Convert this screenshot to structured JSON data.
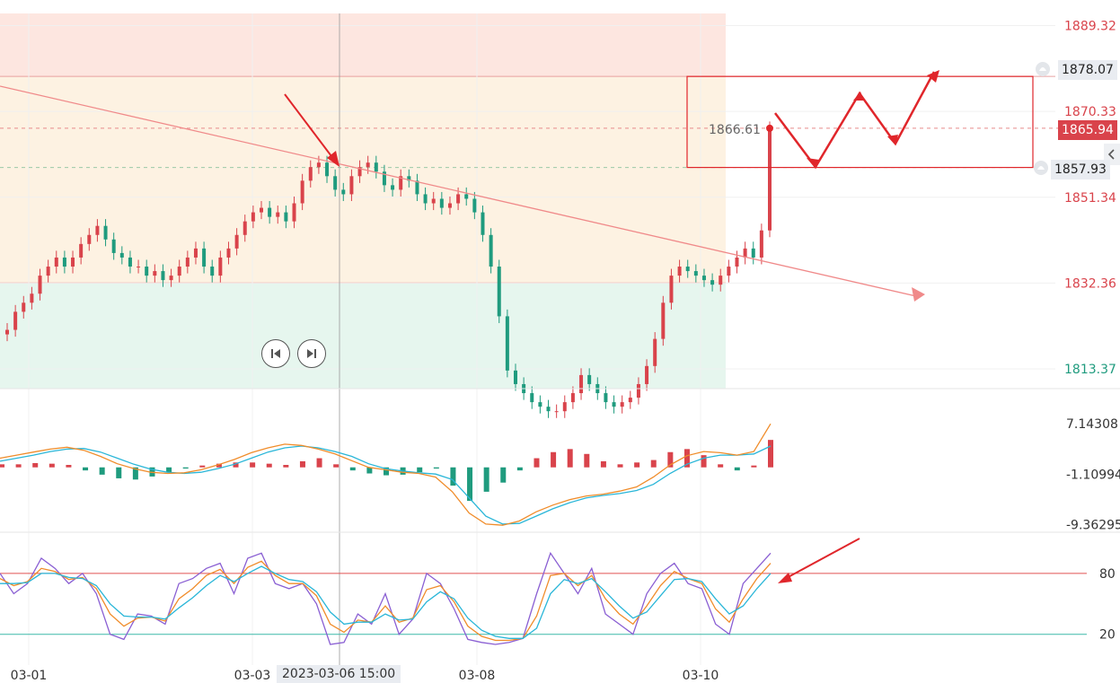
{
  "header": {
    "partial_text": "…"
  },
  "chart_data": [
    {
      "type": "candlestick",
      "title": "",
      "x_ticks": [
        "03-01",
        "03-03",
        "03-08",
        "03-10"
      ],
      "crosshair_time": "2023-03-06 15:00",
      "y_ticks": [
        "1889.32",
        "1870.33",
        "1851.34",
        "1832.36",
        "1813.37"
      ],
      "price_tags": {
        "alert_upper": "1878.07",
        "current": "1865.94",
        "alert_lower": "1857.93",
        "last_close_label": "1866.61"
      },
      "zones": {
        "resistance_top": 1889.32,
        "resistance_bottom": 1878.07,
        "support": 1832.36,
        "bottom": 1813.37
      },
      "colors": {
        "up": "#d9434b",
        "down": "#1f9b7e",
        "resistance_zone": "#fde6e0",
        "middle_zone": "#fdf2e2",
        "support_zone": "#e6f6ee",
        "annotation": "#e0262b"
      },
      "closes": [
        1822,
        1826,
        1828,
        1830,
        1834,
        1836,
        1838,
        1836,
        1838,
        1841,
        1843,
        1845,
        1842,
        1839,
        1838,
        1836,
        1836,
        1834,
        1835,
        1833,
        1834,
        1836,
        1838,
        1840,
        1836,
        1834,
        1838,
        1840,
        1843,
        1846,
        1848,
        1849,
        1847,
        1848,
        1846,
        1850,
        1855,
        1858,
        1859,
        1856,
        1853,
        1852,
        1856,
        1858,
        1859,
        1857,
        1854,
        1853,
        1856,
        1855,
        1852,
        1850,
        1851,
        1849,
        1850,
        1852,
        1851,
        1848,
        1843,
        1836,
        1825,
        1813,
        1810,
        1808,
        1806,
        1805,
        1804,
        1804,
        1806,
        1808,
        1812,
        1810,
        1808,
        1806,
        1805,
        1806,
        1807,
        1810,
        1814,
        1820,
        1828,
        1834,
        1836,
        1835,
        1834,
        1833,
        1832,
        1834,
        1836,
        1838,
        1840,
        1838,
        1844,
        1866.61
      ]
    },
    {
      "type": "macd",
      "y_ticks": [
        "7.14308",
        "-1.10994",
        "-9.36295"
      ],
      "series": [
        {
          "name": "",
          "color": "#29b6d8",
          "values": [
            1,
            1.5,
            2,
            2.6,
            3,
            3.1,
            2.5,
            1.5,
            0.5,
            -0.3,
            -0.8,
            -1.0,
            -0.8,
            -0.2,
            0.5,
            1.5,
            2.5,
            3.2,
            3.5,
            3.2,
            2.6,
            1.8,
            0.6,
            -0.2,
            -0.6,
            -0.9,
            -1.1,
            -2.0,
            -5.0,
            -8.0,
            -9.3,
            -9.2,
            -8.0,
            -6.8,
            -5.8,
            -5.0,
            -4.6,
            -4.3,
            -3.8,
            -2.8,
            -1.0,
            0.5,
            1.5,
            2.0,
            2.0,
            2.2,
            3.5
          ]
        },
        {
          "name": "",
          "color": "#f08c2a",
          "values": [
            1.5,
            2.0,
            2.5,
            3.0,
            3.3,
            2.8,
            1.8,
            0.6,
            -0.2,
            -0.8,
            -1.0,
            -0.9,
            -0.4,
            0.4,
            1.3,
            2.4,
            3.2,
            3.8,
            3.6,
            3.0,
            2.2,
            1.1,
            0.0,
            -0.4,
            -0.8,
            -1.0,
            -1.6,
            -4.0,
            -7.5,
            -9.3,
            -9.5,
            -8.8,
            -7.3,
            -6.2,
            -5.3,
            -4.7,
            -4.4,
            -3.9,
            -3.2,
            -1.6,
            0.4,
            1.9,
            2.6,
            2.4,
            2.0,
            2.6,
            7.14308
          ]
        }
      ],
      "histogram": [
        0.5,
        0.5,
        0.7,
        0.6,
        0.4,
        -0.5,
        -1.2,
        -1.8,
        -2.0,
        -1.5,
        -0.8,
        -0.2,
        0.3,
        0.6,
        0.8,
        0.8,
        0.6,
        0.4,
        1.0,
        1.5,
        0.5,
        -0.5,
        -1.0,
        -1.3,
        -1.2,
        -0.8,
        -0.2,
        -3.0,
        -5.5,
        -4.0,
        -2.5,
        -0.5,
        1.5,
        2.5,
        3.0,
        2.2,
        1.0,
        0.5,
        0.8,
        1.2,
        2.5,
        3.0,
        2.0,
        0.5,
        -0.5,
        0.3,
        4.5
      ]
    },
    {
      "type": "kdj",
      "y_ticks": [
        "80",
        "20"
      ],
      "levels": [
        80,
        20
      ],
      "series": [
        {
          "name": "",
          "color": "#8a5fd3",
          "values": [
            80,
            60,
            70,
            95,
            85,
            70,
            80,
            60,
            20,
            15,
            40,
            38,
            30,
            70,
            75,
            85,
            90,
            60,
            95,
            100,
            70,
            65,
            70,
            50,
            10,
            12,
            40,
            30,
            60,
            20,
            35,
            80,
            70,
            45,
            15,
            12,
            10,
            12,
            16,
            60,
            100,
            80,
            60,
            85,
            40,
            30,
            20,
            60,
            80,
            90,
            70,
            65,
            30,
            20,
            70,
            85,
            100
          ]
        },
        {
          "name": "",
          "color": "#f08c2a",
          "values": [
            75,
            68,
            72,
            85,
            82,
            74,
            76,
            65,
            40,
            28,
            36,
            37,
            33,
            55,
            65,
            78,
            84,
            70,
            86,
            92,
            78,
            70,
            70,
            58,
            30,
            22,
            34,
            32,
            48,
            32,
            36,
            64,
            68,
            52,
            28,
            18,
            14,
            14,
            16,
            38,
            78,
            80,
            68,
            78,
            55,
            40,
            30,
            48,
            68,
            82,
            75,
            70,
            45,
            32,
            55,
            75,
            90
          ]
        },
        {
          "name": "",
          "color": "#29b6d8",
          "values": [
            70,
            70,
            71,
            80,
            80,
            76,
            75,
            68,
            50,
            38,
            37,
            37,
            35,
            46,
            56,
            68,
            78,
            72,
            80,
            87,
            80,
            74,
            72,
            62,
            42,
            30,
            32,
            32,
            40,
            34,
            35,
            52,
            62,
            55,
            36,
            24,
            18,
            16,
            16,
            26,
            60,
            74,
            70,
            75,
            62,
            48,
            36,
            42,
            58,
            74,
            75,
            72,
            55,
            40,
            48,
            65,
            80
          ]
        }
      ]
    }
  ],
  "controls": {
    "prev_label": "previous",
    "next_label": "next"
  }
}
